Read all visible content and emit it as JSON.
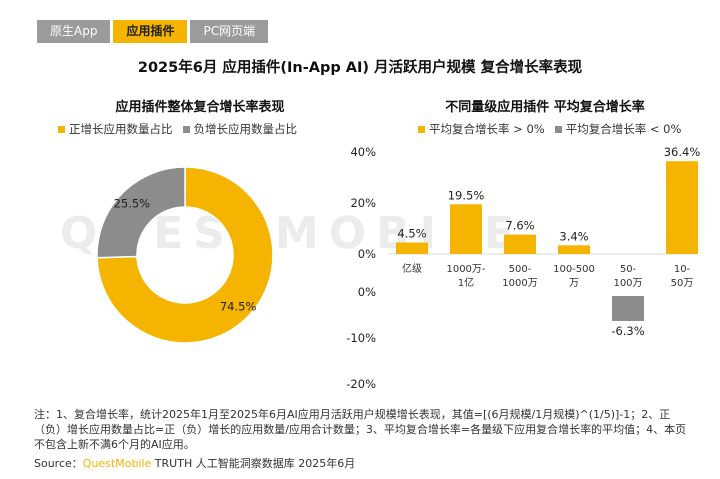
{
  "tabs": [
    {
      "label": "原生App",
      "active": false
    },
    {
      "label": "应用插件",
      "active": true
    },
    {
      "label": "PC网页端",
      "active": false
    }
  ],
  "main_title": "2025年6月 应用插件(In-App AI)  月活跃用户规模 复合增长率表现",
  "watermark": "QUESTMOBILE",
  "colors": {
    "accent": "#f5b400",
    "gray": "#8c8c8c"
  },
  "chart_data": [
    {
      "type": "pie",
      "title": "应用插件整体复合增长率表现",
      "legend_placement": "top",
      "categories": [
        "正增长应用数量占比",
        "负增长应用数量占比"
      ],
      "values": [
        74.5,
        25.5
      ],
      "labels": [
        "74.5%",
        "25.5%"
      ],
      "colors": [
        "#f5b400",
        "#8c8c8c"
      ]
    },
    {
      "type": "bar",
      "title": "不同量级应用插件 平均复合增长率",
      "legend_placement": "top",
      "legend": [
        {
          "label": "平均复合增长率 > 0%",
          "color": "#f5b400"
        },
        {
          "label": "平均复合增长率 < 0%",
          "color": "#8c8c8c"
        }
      ],
      "categories": [
        "亿级",
        "1000万-1亿",
        "500-1000万",
        "100-500万",
        "50-100万",
        "10-50万"
      ],
      "category_lines": [
        [
          "亿级"
        ],
        [
          "1000万-",
          "1亿"
        ],
        [
          "500-",
          "1000万"
        ],
        [
          "100-500",
          "万"
        ],
        [
          "50-",
          "100万"
        ],
        [
          "10-",
          "50万"
        ]
      ],
      "values": [
        4.5,
        19.5,
        7.6,
        3.4,
        -6.3,
        36.4
      ],
      "value_labels": [
        "4.5%",
        "19.5%",
        "7.6%",
        "3.4%",
        "-6.3%",
        "36.4%"
      ],
      "upper_axis": {
        "range": [
          0,
          40
        ],
        "ticks": [
          "40%",
          "20%",
          "0%"
        ],
        "values": [
          40,
          20,
          0
        ]
      },
      "lower_axis": {
        "range": [
          -20,
          0
        ],
        "ticks": [
          "0%",
          "-10%",
          "-20%"
        ],
        "values": [
          0,
          -10,
          -20
        ]
      },
      "grid": false
    }
  ],
  "note": "注：1、复合增长率，统计2025年1月至2025年6月AI应用月活跃用户规模增长表现，其值=[(6月规模/1月规模)^(1/5)]-1；2、正（负）增长应用数量占比=正（负）增长的应用数量/应用合计数量；3、平均复合增长率=各量级下应用复合增长率的平均值；4、本页不包含上新不满6个月的AI应用。",
  "source": {
    "prefix": "Source：",
    "brand": "QuestMobile",
    "suffix": " TRUTH 人工智能洞察数据库 2025年6月"
  }
}
